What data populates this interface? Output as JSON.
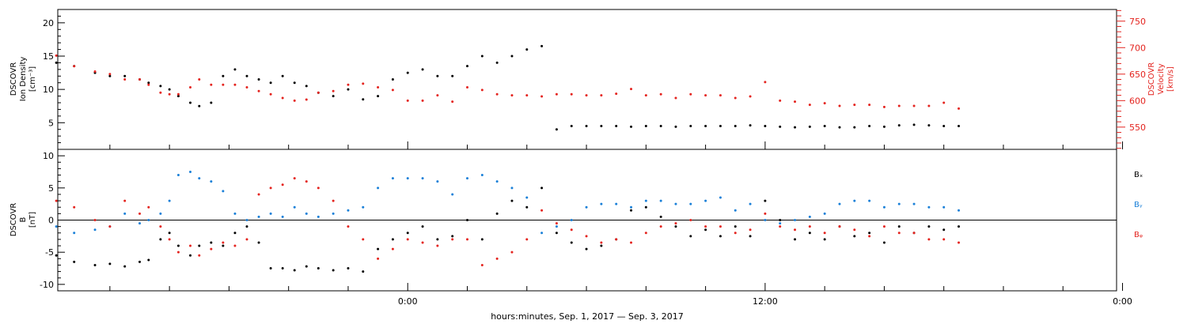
{
  "chart_data": [
    {
      "type": "scatter",
      "panel": "top",
      "left_axis": {
        "label_lines": [
          "DSCOVR",
          "Ion Density",
          "[cm⁻³]"
        ],
        "range": [
          1,
          22
        ],
        "ticks": [
          5,
          10,
          15,
          20
        ],
        "color": "#000000"
      },
      "right_axis": {
        "label_lines": [
          "DSCOVR",
          "Velocity",
          "[km/s]"
        ],
        "range": [
          508,
          772
        ],
        "ticks": [
          550,
          600,
          650,
          700,
          750
        ],
        "color": "#e4241f"
      },
      "series": [
        {
          "name": "",
          "axis": "left",
          "color": "#000000",
          "x": [
            -11.8,
            -11.2,
            -10.5,
            -10,
            -9.5,
            -9,
            -8.7,
            -8.3,
            -8,
            -7.7,
            -7.3,
            -7,
            -6.6,
            -6.2,
            -5.8,
            -5.4,
            -5,
            -4.6,
            -4.2,
            -3.8,
            -3.4,
            -3,
            -2.5,
            -2,
            -1.5,
            -1,
            -0.5,
            0,
            0.5,
            1,
            1.5,
            2,
            2.5,
            3,
            3.5,
            4,
            4.5,
            5,
            5.5,
            6,
            6.5,
            7,
            7.5,
            8,
            8.5,
            9,
            9.5,
            10,
            10.5,
            11,
            11.5,
            12,
            12.5,
            13,
            13.5,
            14,
            14.5,
            15,
            15.5,
            16,
            16.5,
            17,
            17.5,
            18,
            18.5
          ],
          "y": [
            14,
            13.5,
            12.5,
            12,
            12,
            11.5,
            11,
            10.5,
            10,
            9,
            8,
            7.5,
            8,
            12,
            13,
            12,
            11.5,
            11,
            12,
            11,
            10.5,
            9.5,
            9,
            10,
            8.5,
            9,
            11.5,
            12.5,
            13,
            12,
            12,
            13.5,
            15,
            14,
            15,
            16,
            16.5,
            4,
            4.5,
            4.5,
            4.5,
            4.5,
            4.4,
            4.5,
            4.5,
            4.4,
            4.5,
            4.5,
            4.5,
            4.5,
            4.6,
            4.5,
            4.4,
            4.3,
            4.4,
            4.5,
            4.3,
            4.3,
            4.5,
            4.4,
            4.6,
            4.7,
            4.6,
            4.5,
            4.5
          ]
        },
        {
          "name": "",
          "axis": "right",
          "color": "#e4241f",
          "x": [
            -11.8,
            -11.2,
            -10.5,
            -10,
            -9.5,
            -9,
            -8.7,
            -8.3,
            -8,
            -7.7,
            -7.3,
            -7,
            -6.6,
            -6.2,
            -5.8,
            -5.4,
            -5,
            -4.6,
            -4.2,
            -3.8,
            -3.4,
            -3,
            -2.5,
            -2,
            -1.5,
            -1,
            -0.5,
            0,
            0.5,
            1,
            1.5,
            2,
            2.5,
            3,
            3.5,
            4,
            4.5,
            5,
            5.5,
            6,
            6.5,
            7,
            7.5,
            8,
            8.5,
            9,
            9.5,
            10,
            10.5,
            11,
            11.5,
            12,
            12.5,
            13,
            13.5,
            14,
            14.5,
            15,
            15.5,
            16,
            16.5,
            17,
            17.5,
            18,
            18.5
          ],
          "y": [
            685,
            665,
            655,
            650,
            640,
            640,
            630,
            615,
            612,
            612,
            625,
            640,
            630,
            630,
            630,
            625,
            618,
            612,
            605,
            600,
            602,
            615,
            618,
            630,
            632,
            625,
            620,
            600,
            600,
            610,
            598,
            625,
            620,
            612,
            610,
            610,
            608,
            612,
            612,
            610,
            610,
            613,
            622,
            610,
            612,
            605,
            612,
            610,
            610,
            605,
            608,
            635,
            600,
            598,
            592,
            595,
            590,
            592,
            592,
            588,
            590,
            590,
            590,
            596,
            585
          ]
        }
      ]
    },
    {
      "type": "scatter",
      "panel": "bottom",
      "left_axis": {
        "label_lines": [
          "DSCOVR",
          "B",
          "[nT]"
        ],
        "range": [
          -11,
          11
        ],
        "ticks": [
          -10,
          -5,
          0,
          5,
          10
        ],
        "color": "#000000"
      },
      "zero_line": true,
      "series": [
        {
          "name": "Bₓ",
          "color": "#000000",
          "x": [
            -11.8,
            -11.2,
            -10.5,
            -10,
            -9.5,
            -9,
            -8.7,
            -8.3,
            -8,
            -7.7,
            -7.3,
            -7,
            -6.6,
            -6.2,
            -5.8,
            -5.4,
            -5,
            -4.6,
            -4.2,
            -3.8,
            -3.4,
            -3,
            -2.5,
            -2,
            -1.5,
            -1,
            -0.5,
            0,
            0.5,
            1,
            1.5,
            2,
            2.5,
            3,
            3.5,
            4,
            4.5,
            5,
            5.5,
            6,
            6.5,
            7,
            7.5,
            8,
            8.5,
            9,
            9.5,
            10,
            10.5,
            11,
            11.5,
            12,
            12.5,
            13,
            13.5,
            14,
            14.5,
            15,
            15.5,
            16,
            16.5,
            17,
            17.5,
            18,
            18.5
          ],
          "y": [
            -5.5,
            -6.5,
            -7,
            -6.8,
            -7.2,
            -6.5,
            -6.2,
            -3,
            -2,
            -4,
            -5.5,
            -4,
            -3.5,
            -4,
            -2,
            -1,
            -3.5,
            -7.5,
            -7.5,
            -7.8,
            -7.2,
            -7.5,
            -7.8,
            -7.5,
            -8,
            -4.5,
            -3,
            -2,
            -1,
            -3,
            -2.5,
            0,
            -3,
            1,
            3,
            2,
            5,
            -2,
            -3.5,
            -4.5,
            -4,
            -3,
            1.5,
            2,
            0.5,
            -1,
            -2.5,
            -1.5,
            -2.5,
            -1,
            -2.5,
            3,
            0,
            -3,
            -2,
            -3,
            -1,
            -2.5,
            -2,
            -3.5,
            -1,
            -2,
            -1,
            -1.5,
            -1
          ]
        },
        {
          "name": "Bᵧ",
          "color": "#1a80d8",
          "x": [
            -11.8,
            -11.2,
            -10.5,
            -10,
            -9.5,
            -9,
            -8.7,
            -8.3,
            -8,
            -7.7,
            -7.3,
            -7,
            -6.6,
            -6.2,
            -5.8,
            -5.4,
            -5,
            -4.6,
            -4.2,
            -3.8,
            -3.4,
            -3,
            -2.5,
            -2,
            -1.5,
            -1,
            -0.5,
            0,
            0.5,
            1,
            1.5,
            2,
            2.5,
            3,
            3.5,
            4,
            4.5,
            5,
            5.5,
            6,
            6.5,
            7,
            7.5,
            8,
            8.5,
            9,
            9.5,
            10,
            10.5,
            11,
            11.5,
            12,
            12.5,
            13,
            13.5,
            14,
            14.5,
            15,
            15.5,
            16,
            16.5,
            17,
            17.5,
            18,
            18.5
          ],
          "y": [
            -1,
            -2,
            -1.5,
            -1,
            1,
            -0.5,
            0,
            1,
            3,
            7,
            7.5,
            6.5,
            6,
            4.5,
            1,
            0,
            0.5,
            1,
            0.5,
            2,
            1,
            0.5,
            1,
            1.5,
            2,
            5,
            6.5,
            6.5,
            6.5,
            6,
            4,
            6.5,
            7,
            6,
            5,
            3.5,
            -2,
            -1,
            0,
            2,
            2.5,
            2.5,
            2,
            3,
            3,
            2.5,
            2.5,
            3,
            3.5,
            1.5,
            2.5,
            0,
            -0.5,
            0,
            0.5,
            1,
            2.5,
            3,
            3,
            2,
            2.5,
            2.5,
            2,
            2,
            1.5
          ]
        },
        {
          "name": "Bᵩ",
          "color": "#e4241f",
          "x": [
            -11.8,
            -11.2,
            -10.5,
            -10,
            -9.5,
            -9,
            -8.7,
            -8.3,
            -8,
            -7.7,
            -7.3,
            -7,
            -6.6,
            -6.2,
            -5.8,
            -5.4,
            -5,
            -4.6,
            -4.2,
            -3.8,
            -3.4,
            -3,
            -2.5,
            -2,
            -1.5,
            -1,
            -0.5,
            0,
            0.5,
            1,
            1.5,
            2,
            2.5,
            3,
            3.5,
            4,
            4.5,
            5,
            5.5,
            6,
            6.5,
            7,
            7.5,
            8,
            8.5,
            9,
            9.5,
            10,
            10.5,
            11,
            11.5,
            12,
            12.5,
            13,
            13.5,
            14,
            14.5,
            15,
            15.5,
            16,
            16.5,
            17,
            17.5,
            18,
            18.5
          ],
          "y": [
            3,
            2,
            0,
            -1,
            3,
            1,
            2,
            -1,
            -3,
            -5,
            -4,
            -5.5,
            -4.5,
            -3.5,
            -4,
            -3,
            4,
            5,
            5.5,
            6.5,
            6,
            5,
            3,
            -1,
            -3,
            -6,
            -4.5,
            -3,
            -3.5,
            -4,
            -3,
            -3,
            -7,
            -6,
            -5,
            -3,
            1.5,
            -0.5,
            -1.5,
            -2.5,
            -3.5,
            -3,
            -3.5,
            -2,
            -1,
            -0.5,
            0,
            -1,
            -1,
            -2,
            -1.5,
            1,
            -1,
            -1.5,
            -1,
            -2,
            -1,
            -1.5,
            -2.5,
            -1,
            -2,
            -2,
            -3,
            -3,
            -3.5
          ]
        }
      ]
    },
    {
      "type": "x_axis",
      "unit": "hours since 00:00 Sep. 2, 2017",
      "range": [
        -11.75,
        23.8
      ],
      "labeled_ticks": [
        {
          "x": 0,
          "label": "0:00"
        },
        {
          "x": 12,
          "label": "12:00"
        },
        {
          "x": 24,
          "label": "0:00"
        }
      ],
      "minor_ticks": [
        -10,
        -8,
        -6,
        -4,
        -2,
        2,
        4,
        6,
        8,
        10,
        14,
        16,
        18,
        20,
        22
      ],
      "title": "hours:minutes, Sep.  1, 2017 — Sep.  3, 2017"
    }
  ]
}
